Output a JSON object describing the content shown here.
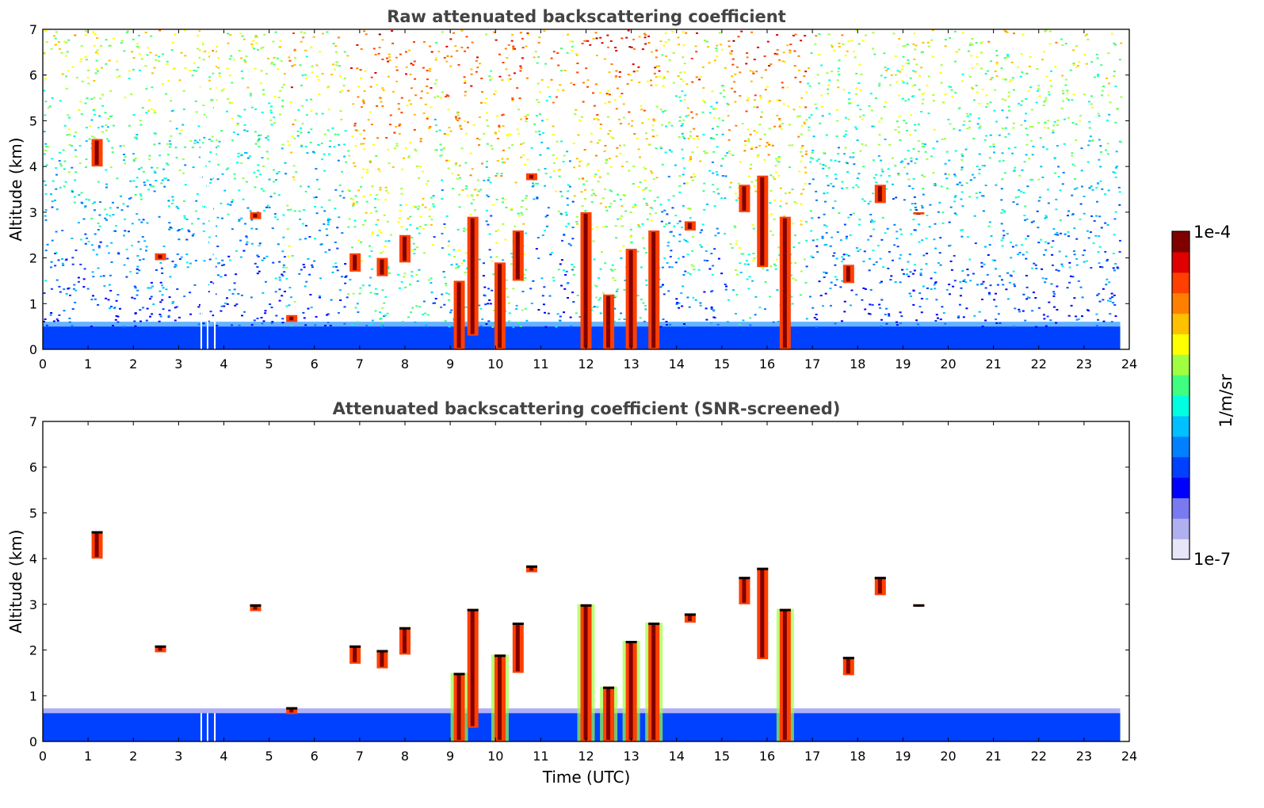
{
  "chart_data": [
    {
      "type": "heatmap",
      "title": "Raw attenuated backscattering coefficient",
      "xlabel": "",
      "ylabel": "Altitude (km)",
      "xlim": [
        0,
        24
      ],
      "ylim": [
        0,
        7
      ],
      "x_ticks": [
        "0",
        "1",
        "2",
        "3",
        "4",
        "5",
        "6",
        "7",
        "8",
        "9",
        "10",
        "11",
        "12",
        "13",
        "14",
        "15",
        "16",
        "17",
        "18",
        "19",
        "20",
        "21",
        "22",
        "23",
        "24"
      ],
      "y_ticks": [
        "0",
        "1",
        "2",
        "3",
        "4",
        "5",
        "6",
        "7"
      ],
      "data_extent_hours": [
        0,
        23.8
      ],
      "noise_model": "noisy speckle everywhere; dense blue near ground (<0.5 km), cyan/green mid, yellow/orange speckle aloft",
      "noisier_periods_hours": [
        [
          5.35,
          5.55
        ],
        [
          6.7,
          8.6
        ],
        [
          8.85,
          9.7
        ],
        [
          9.9,
          10.7
        ],
        [
          11.2,
          11.4
        ],
        [
          11.7,
          13.6
        ],
        [
          14.2,
          14.5
        ],
        [
          15.1,
          16.85
        ]
      ],
      "gaps_hours": [
        3.5,
        3.64,
        3.8
      ],
      "clouds": [
        {
          "x": 1.2,
          "y0": 4.0,
          "y1": 4.6
        },
        {
          "x": 2.6,
          "y0": 1.95,
          "y1": 2.1
        },
        {
          "x": 4.7,
          "y0": 2.85,
          "y1": 3.0
        },
        {
          "x": 5.5,
          "y0": 0.6,
          "y1": 0.75
        },
        {
          "x": 6.9,
          "y0": 1.7,
          "y1": 2.1
        },
        {
          "x": 7.5,
          "y0": 1.6,
          "y1": 2.0
        },
        {
          "x": 8.0,
          "y0": 1.9,
          "y1": 2.5
        },
        {
          "x": 9.2,
          "y0": 0.0,
          "y1": 1.5
        },
        {
          "x": 9.5,
          "y0": 0.3,
          "y1": 2.9
        },
        {
          "x": 10.1,
          "y0": 0.0,
          "y1": 1.9
        },
        {
          "x": 10.5,
          "y0": 1.5,
          "y1": 2.6
        },
        {
          "x": 10.8,
          "y0": 3.7,
          "y1": 3.85
        },
        {
          "x": 12.0,
          "y0": 0.0,
          "y1": 3.0
        },
        {
          "x": 12.5,
          "y0": 0.0,
          "y1": 1.2
        },
        {
          "x": 13.0,
          "y0": 0.0,
          "y1": 2.2
        },
        {
          "x": 13.5,
          "y0": 0.0,
          "y1": 2.6
        },
        {
          "x": 14.3,
          "y0": 2.6,
          "y1": 2.8
        },
        {
          "x": 15.5,
          "y0": 3.0,
          "y1": 3.6
        },
        {
          "x": 15.9,
          "y0": 1.8,
          "y1": 3.8
        },
        {
          "x": 16.4,
          "y0": 0.0,
          "y1": 2.9
        },
        {
          "x": 17.8,
          "y0": 1.45,
          "y1": 1.85
        },
        {
          "x": 18.5,
          "y0": 3.2,
          "y1": 3.6
        },
        {
          "x": 19.35,
          "y0": 2.95,
          "y1": 3.0
        }
      ]
    },
    {
      "type": "heatmap",
      "title": "Attenuated backscattering coefficient (SNR-screened)",
      "xlabel": "Time (UTC)",
      "ylabel": "Altitude (km)",
      "xlim": [
        0,
        24
      ],
      "ylim": [
        0,
        7
      ],
      "x_ticks": [
        "0",
        "1",
        "2",
        "3",
        "4",
        "5",
        "6",
        "7",
        "8",
        "9",
        "10",
        "11",
        "12",
        "13",
        "14",
        "15",
        "16",
        "17",
        "18",
        "19",
        "20",
        "21",
        "22",
        "23",
        "24"
      ],
      "y_ticks": [
        "0",
        "1",
        "2",
        "3",
        "4",
        "5",
        "6",
        "7"
      ],
      "data_extent_hours": [
        0,
        23.8
      ],
      "note_visual": "noise removed; only boundary layer (blue, below ~0.6 km) and cloud features retained, cloud edges drawn in black"
    }
  ],
  "colorbar": {
    "label": "1/m/sr",
    "max_label": "1e-4",
    "min_label": "1e-7",
    "colors": [
      "#e6e6f8",
      "#b0b0f0",
      "#7a7af0",
      "#0000ff",
      "#0040ff",
      "#0080ff",
      "#00c0ff",
      "#00ffe0",
      "#40ff80",
      "#a0ff40",
      "#ffff00",
      "#ffc000",
      "#ff8000",
      "#ff4000",
      "#e00000",
      "#800000"
    ]
  }
}
